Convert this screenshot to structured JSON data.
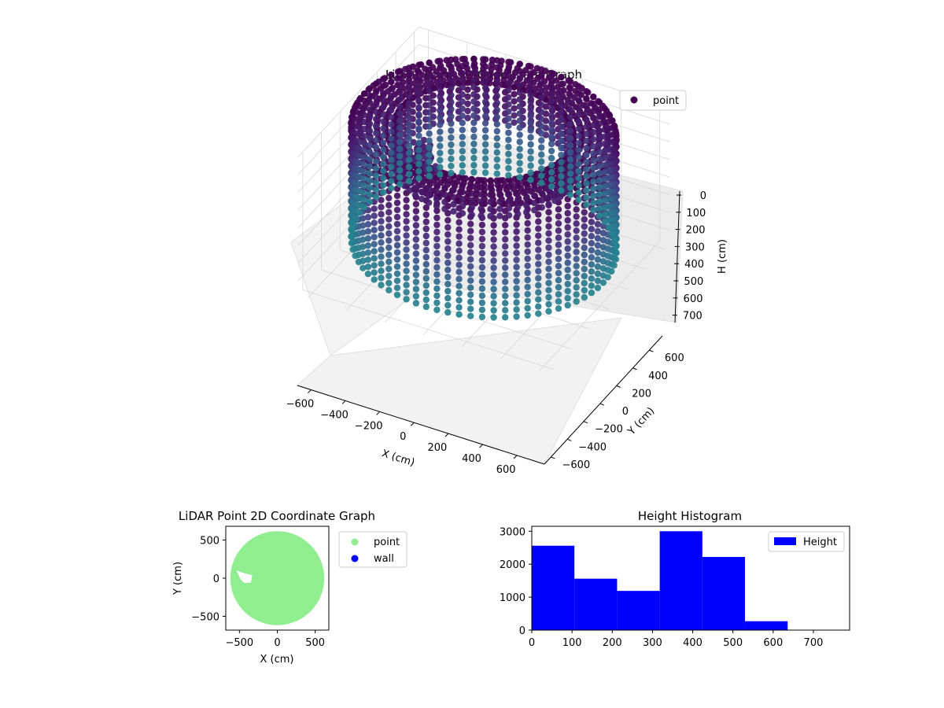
{
  "colors": {
    "viridis_top": "#440154",
    "viridis_bottom": "#26828e",
    "point_2d": "#90ee90",
    "wall_2d": "#0000ff",
    "histogram": "#0000ff",
    "pane": "#f2f2f2",
    "grid": "#d0d0d0"
  },
  "chart_data": [
    {
      "type": "scatter",
      "subtype": "3d",
      "title": "LiDAR Point 3D Coordinate Graph",
      "xlabel": "X (cm)",
      "ylabel": "Y (cm)",
      "zlabel": "H (cm)",
      "xlim": [
        -650,
        650
      ],
      "ylim": [
        -650,
        650
      ],
      "zlim": [
        0,
        780
      ],
      "z_inverted": true,
      "xticks": [
        "−600",
        "−400",
        "−200",
        "0",
        "200",
        "400",
        "600"
      ],
      "yticks": [
        "−600",
        "−400",
        "−200",
        "0",
        "200",
        "400",
        "600"
      ],
      "zticks": [
        "0",
        "100",
        "200",
        "300",
        "400",
        "500",
        "600",
        "700"
      ],
      "legend": {
        "entries": [
          "point"
        ],
        "placement": "top-right"
      },
      "grid": true,
      "colormap": "viridis",
      "shape": {
        "description": "cylindrical wall of points, colored by height",
        "outer_radius": 620,
        "inner_radius": 420,
        "height_top": 0,
        "height_bottom": 640,
        "inner_cluster_center": [
          -300,
          -60
        ]
      }
    },
    {
      "type": "scatter",
      "title": "LiDAR Point 2D Coordinate Graph",
      "xlabel": "X (cm)",
      "ylabel": "Y (cm)",
      "xlim": [
        -680,
        680
      ],
      "ylim": [
        -680,
        680
      ],
      "xticks": [
        "−500",
        "0",
        "500"
      ],
      "yticks": [
        "500",
        "0",
        "−500"
      ],
      "legend": {
        "entries": [
          "point",
          "wall"
        ],
        "placement": "outside-right"
      },
      "series": [
        {
          "name": "point",
          "color": "#90ee90",
          "shape": "filled disc",
          "radius": 620
        },
        {
          "name": "wall",
          "color": "#0000ff"
        }
      ],
      "gap_polygon": [
        [
          -540,
          100
        ],
        [
          -420,
          60
        ],
        [
          -330,
          40
        ],
        [
          -350,
          -60
        ],
        [
          -440,
          -60
        ],
        [
          -480,
          -20
        ]
      ]
    },
    {
      "type": "bar",
      "subtype": "histogram",
      "title": "Height Histogram",
      "xlabel": "",
      "ylabel": "",
      "xlim": [
        0,
        790
      ],
      "ylim": [
        0,
        3150
      ],
      "xticks": [
        "0",
        "100",
        "200",
        "300",
        "400",
        "500",
        "600",
        "700"
      ],
      "yticks": [
        "0",
        "1000",
        "2000",
        "3000"
      ],
      "legend": {
        "entries": [
          "Height"
        ],
        "placement": "top-right"
      },
      "series": [
        {
          "name": "Height",
          "color": "#0000ff"
        }
      ],
      "bins": [
        {
          "from": 0,
          "to": 106,
          "count": 2560
        },
        {
          "from": 106,
          "to": 212,
          "count": 1560
        },
        {
          "from": 212,
          "to": 318,
          "count": 1190
        },
        {
          "from": 318,
          "to": 424,
          "count": 3000
        },
        {
          "from": 424,
          "to": 530,
          "count": 2220
        },
        {
          "from": 530,
          "to": 636,
          "count": 270
        }
      ]
    }
  ]
}
